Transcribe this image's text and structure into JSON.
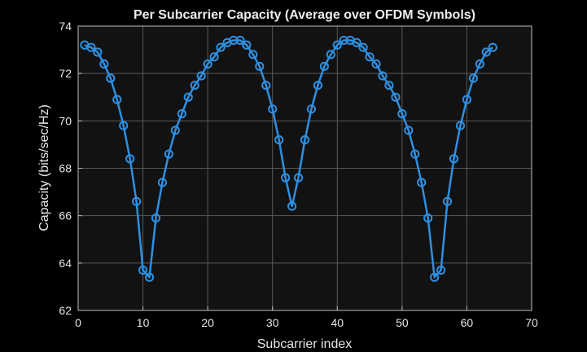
{
  "colors": {
    "figure_background": "#000000",
    "axes_background": "#121212",
    "grid": "#5a5a5a",
    "axis_frame": "#bdbdbd",
    "text": "#e6e6e6",
    "series": "#2f8fe0"
  },
  "chart_data": {
    "type": "line",
    "title": "Per Subcarrier Capacity (Average over OFDM Symbols)",
    "xlabel": "Subcarrier index",
    "ylabel": "Capacity (bits/sec/Hz)",
    "xlim": [
      0,
      70
    ],
    "ylim": [
      62,
      74
    ],
    "xticks": [
      0,
      10,
      20,
      30,
      40,
      50,
      60,
      70
    ],
    "yticks": [
      62,
      64,
      66,
      68,
      70,
      72,
      74
    ],
    "grid": true,
    "marker": "circle",
    "series": [
      {
        "x": [
          1,
          2,
          3,
          4,
          5,
          6,
          7,
          8,
          9,
          10,
          11,
          12,
          13,
          14,
          15,
          16,
          17,
          18,
          19,
          20,
          21,
          22,
          23,
          24,
          25,
          26,
          27,
          28,
          29,
          30,
          31,
          32,
          33,
          34,
          35,
          36,
          37,
          38,
          39,
          40,
          41,
          42,
          43,
          44,
          45,
          46,
          47,
          48,
          49,
          50,
          51,
          52,
          53,
          54,
          55,
          56,
          57,
          58,
          59,
          60,
          61,
          62,
          63,
          64
        ],
        "values": [
          73.2,
          73.1,
          72.9,
          72.4,
          71.8,
          70.9,
          69.8,
          68.4,
          66.6,
          63.7,
          63.4,
          65.9,
          67.4,
          68.6,
          69.6,
          70.3,
          71.0,
          71.5,
          71.9,
          72.4,
          72.7,
          73.1,
          73.3,
          73.4,
          73.4,
          73.2,
          72.8,
          72.3,
          71.5,
          70.5,
          69.2,
          67.6,
          66.4,
          67.6,
          69.2,
          70.5,
          71.5,
          72.3,
          72.8,
          73.2,
          73.4,
          73.4,
          73.3,
          73.1,
          72.7,
          72.4,
          71.9,
          71.5,
          71.0,
          70.3,
          69.6,
          68.6,
          67.4,
          65.9,
          63.4,
          63.7,
          66.6,
          68.4,
          69.8,
          70.9,
          71.8,
          72.4,
          72.9,
          73.1
        ]
      }
    ]
  }
}
